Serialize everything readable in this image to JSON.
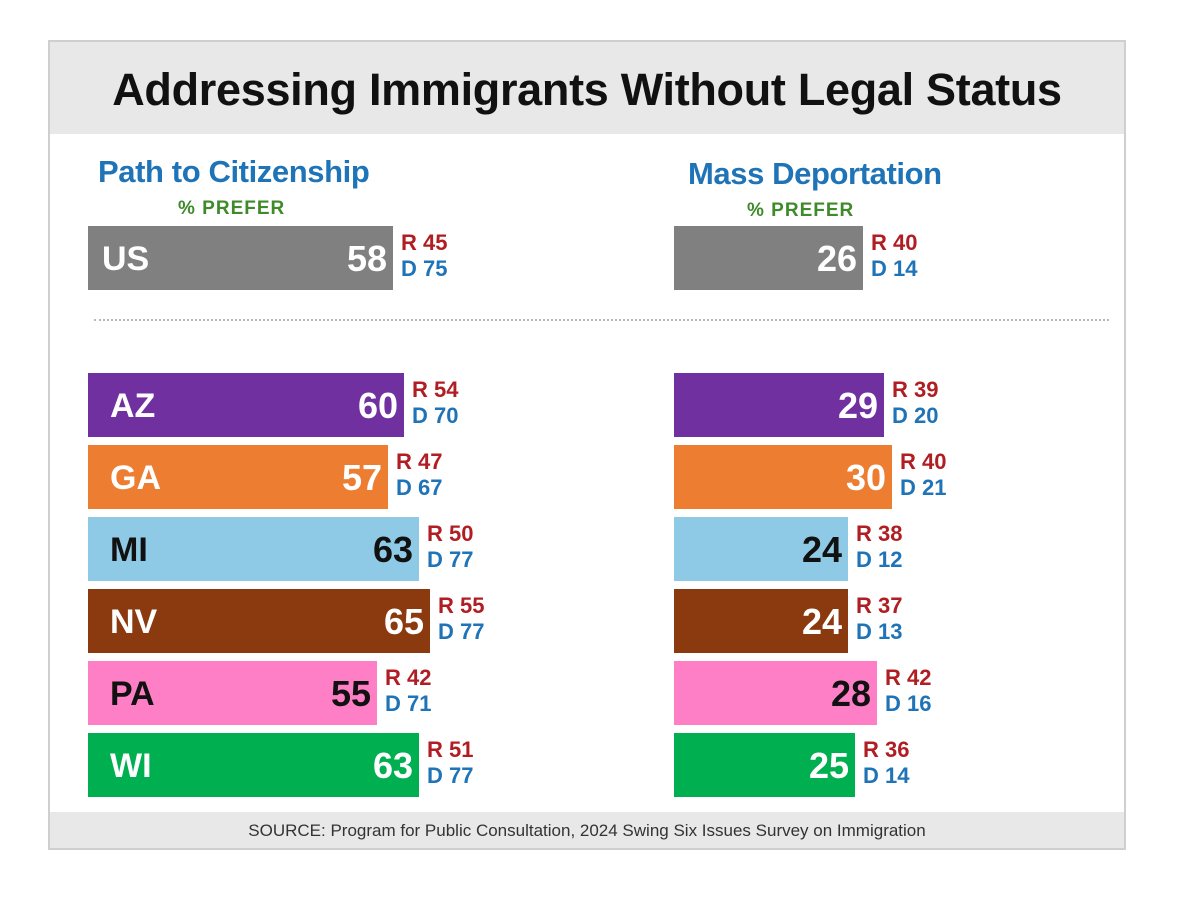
{
  "title": "Addressing Immigrants Without Legal Status",
  "source": "SOURCE: Program for Public Consultation, 2024 Swing Six Issues Survey on Immigration",
  "colors": {
    "US": "#808080",
    "AZ": "#7030a0",
    "GA": "#ed7d31",
    "MI": "#8ecae6",
    "NV": "#8b3a0f",
    "PA": "#ff7fc7",
    "WI": "#00b050",
    "republican": "#b01e23",
    "democrat": "#1f73b7",
    "panel_title": "#1f73b7",
    "prefer": "#3f8a2a"
  },
  "chart_data": [
    {
      "type": "bar",
      "orientation": "horizontal",
      "title": "Path to Citizenship",
      "subtitle": "% PREFER",
      "unit": "%",
      "xlim": [
        0,
        100
      ],
      "categories": [
        "US",
        "AZ",
        "GA",
        "MI",
        "NV",
        "PA",
        "WI"
      ],
      "values": [
        58,
        60,
        57,
        63,
        65,
        55,
        63
      ],
      "republican": [
        "R 45",
        "R 54",
        "R 47",
        "R 50",
        "R 55",
        "R 42",
        "R 51"
      ],
      "democrat": [
        "D 75",
        "D 70",
        "D 67",
        "D 77",
        "D 77",
        "D 71",
        "D 77"
      ],
      "republican_values": [
        45,
        54,
        47,
        50,
        55,
        42,
        51
      ],
      "democrat_values": [
        75,
        70,
        67,
        77,
        77,
        71,
        77
      ]
    },
    {
      "type": "bar",
      "orientation": "horizontal",
      "title": "Mass Deportation",
      "subtitle": "% PREFER",
      "unit": "%",
      "xlim": [
        0,
        100
      ],
      "categories": [
        "US",
        "AZ",
        "GA",
        "MI",
        "NV",
        "PA",
        "WI"
      ],
      "values": [
        26,
        29,
        30,
        24,
        24,
        28,
        25
      ],
      "republican": [
        "R 40",
        "R 39",
        "R 40",
        "R 38",
        "R 37",
        "R 42",
        "R 36"
      ],
      "democrat": [
        "D 14",
        "D 20",
        "D 21",
        "D 12",
        "D 13",
        "D 16",
        "D 14"
      ],
      "republican_values": [
        40,
        39,
        40,
        38,
        37,
        42,
        36
      ],
      "democrat_values": [
        14,
        20,
        21,
        12,
        13,
        16,
        14
      ]
    }
  ]
}
